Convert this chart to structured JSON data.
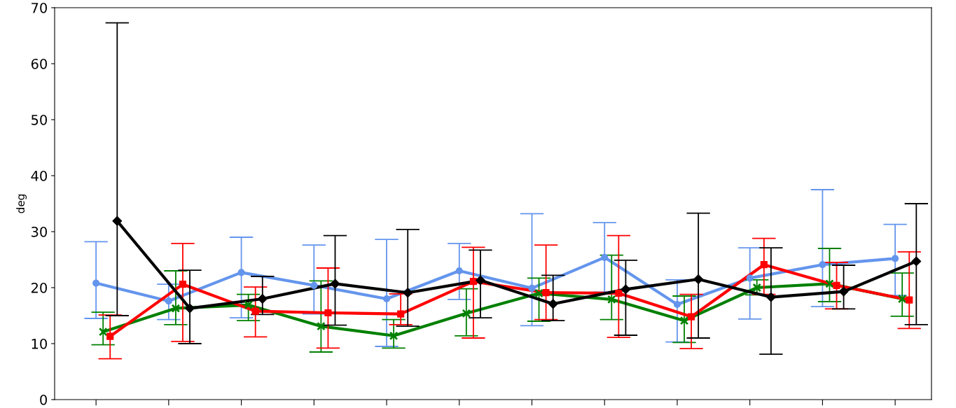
{
  "chart_data": {
    "type": "line",
    "ylabel": "deg",
    "categories": [
      null,
      null,
      null,
      null,
      null,
      null,
      null,
      null,
      null,
      null,
      null,
      null
    ],
    "ylim": [
      0,
      70
    ],
    "yticks": [
      0,
      10,
      20,
      30,
      40,
      50,
      60,
      70
    ],
    "grid": false,
    "series": [
      {
        "color": "#6495ed",
        "marker": "circle",
        "values": [
          20.8,
          17.6,
          22.7,
          20.4,
          18.0,
          23.0,
          19.9,
          25.4,
          17.0,
          21.7,
          24.1,
          25.2
        ],
        "errors": [
          [
            14.5,
            28.2
          ],
          [
            14.3,
            20.6
          ],
          [
            14.6,
            29.0
          ],
          [
            15.3,
            27.6
          ],
          [
            9.5,
            28.6
          ],
          [
            17.9,
            27.9
          ],
          [
            13.2,
            33.2
          ],
          [
            19.2,
            31.6
          ],
          [
            10.3,
            21.4
          ],
          [
            14.4,
            27.1
          ],
          [
            16.6,
            37.5
          ],
          [
            18.6,
            31.3
          ]
        ]
      },
      {
        "color": "#008000",
        "marker": "cross",
        "values": [
          12.1,
          16.3,
          16.9,
          13.1,
          11.4,
          15.4,
          19.0,
          17.9,
          14.1,
          20.0,
          20.7,
          18.0
        ],
        "errors": [
          [
            9.8,
            15.6
          ],
          [
            13.4,
            23.0
          ],
          [
            14.1,
            18.8
          ],
          [
            8.5,
            21.2
          ],
          [
            9.2,
            14.3
          ],
          [
            11.4,
            19.8
          ],
          [
            14.0,
            21.7
          ],
          [
            14.3,
            25.8
          ],
          [
            10.2,
            18.5
          ],
          [
            18.7,
            21.4
          ],
          [
            17.5,
            27.0
          ],
          [
            14.9,
            22.6
          ]
        ]
      },
      {
        "color": "#ff0000",
        "marker": "square",
        "values": [
          11.3,
          20.6,
          15.8,
          15.5,
          15.3,
          21.1,
          19.1,
          19.0,
          14.8,
          24.1,
          20.4,
          17.8
        ],
        "errors": [
          [
            7.3,
            15.1
          ],
          [
            10.4,
            27.9
          ],
          [
            11.2,
            20.1
          ],
          [
            9.2,
            23.5
          ],
          [
            13.4,
            18.9
          ],
          [
            11.0,
            27.2
          ],
          [
            14.3,
            27.6
          ],
          [
            11.1,
            29.3
          ],
          [
            9.1,
            18.8
          ],
          [
            18.8,
            28.8
          ],
          [
            16.2,
            24.5
          ],
          [
            12.7,
            26.4
          ]
        ]
      },
      {
        "color": "#000000",
        "marker": "diamond",
        "values": [
          31.9,
          16.3,
          18.0,
          20.7,
          19.1,
          21.3,
          17.1,
          19.7,
          21.5,
          18.3,
          19.3,
          24.7
        ],
        "errors": [
          [
            15.0,
            67.3
          ],
          [
            10.0,
            23.1
          ],
          [
            15.2,
            22.0
          ],
          [
            13.3,
            29.3
          ],
          [
            13.1,
            30.4
          ],
          [
            14.6,
            26.7
          ],
          [
            14.1,
            22.2
          ],
          [
            11.5,
            24.9
          ],
          [
            11.0,
            33.3
          ],
          [
            8.1,
            27.1
          ],
          [
            16.2,
            24.0
          ],
          [
            13.4,
            35.0
          ]
        ]
      }
    ]
  }
}
